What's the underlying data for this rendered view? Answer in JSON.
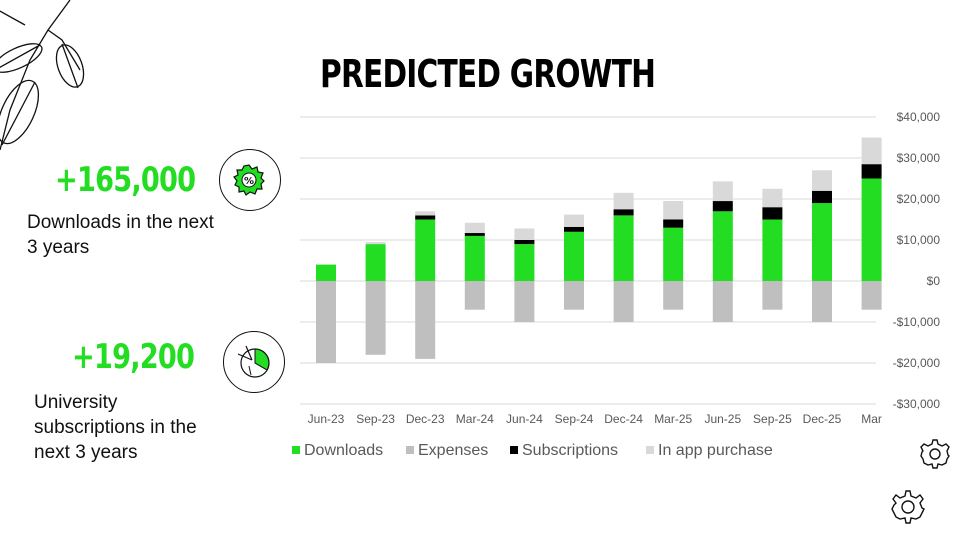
{
  "title": "PREDICTED GROWTH",
  "stats": [
    {
      "value": "+165,000",
      "label_line1": "Downloads in the next",
      "label_line2": "3 years",
      "icon": "gear-percent-icon"
    },
    {
      "value": "+19,200",
      "label_line1": "University",
      "label_line2": "subscriptions in the",
      "label_line3": "next 3 years",
      "icon": "pie-chart-icon"
    }
  ],
  "colors": {
    "downloads": "#22dd22",
    "expenses": "#bfbfbf",
    "subscriptions": "#000000",
    "in_app_purchase": "#d9d9d9",
    "accent": "#22dd22",
    "grid": "#d9d9d9",
    "axis_text": "#595959"
  },
  "chart_data": {
    "type": "bar",
    "stacked": true,
    "title": "",
    "xlabel": "",
    "ylabel": "",
    "categories": [
      "Jun-23",
      "Sep-23",
      "Dec-23",
      "Mar-24",
      "Jun-24",
      "Sep-24",
      "Dec-24",
      "Mar-25",
      "Jun-25",
      "Sep-25",
      "Dec-25",
      "Mar"
    ],
    "series": [
      {
        "name": "Downloads",
        "values": [
          4000,
          9000,
          15000,
          11000,
          9000,
          12000,
          16000,
          13000,
          17000,
          15000,
          19000,
          25000
        ]
      },
      {
        "name": "Expenses",
        "values": [
          -20000,
          -18000,
          -19000,
          -7000,
          -10000,
          -7000,
          -10000,
          -7000,
          -10000,
          -7000,
          -10000,
          -7000
        ]
      },
      {
        "name": "Subscriptions",
        "values": [
          0,
          0,
          1000,
          700,
          1000,
          1200,
          1500,
          2000,
          2500,
          3000,
          3000,
          3500
        ]
      },
      {
        "name": "In app purchase",
        "values": [
          0,
          500,
          1000,
          2500,
          2800,
          3000,
          4000,
          4500,
          4800,
          4500,
          5000,
          6500
        ]
      }
    ],
    "ylim": [
      -30000,
      40000
    ],
    "yticks": [
      40000,
      30000,
      20000,
      10000,
      0,
      -10000,
      -20000,
      -30000
    ],
    "ytick_labels": [
      "$40,000",
      "$30,000",
      "$20,000",
      "$10,000",
      "$0",
      "-$10,000",
      "-$20,000",
      "-$30,000"
    ],
    "grid": true,
    "legend": "bottom-left"
  }
}
